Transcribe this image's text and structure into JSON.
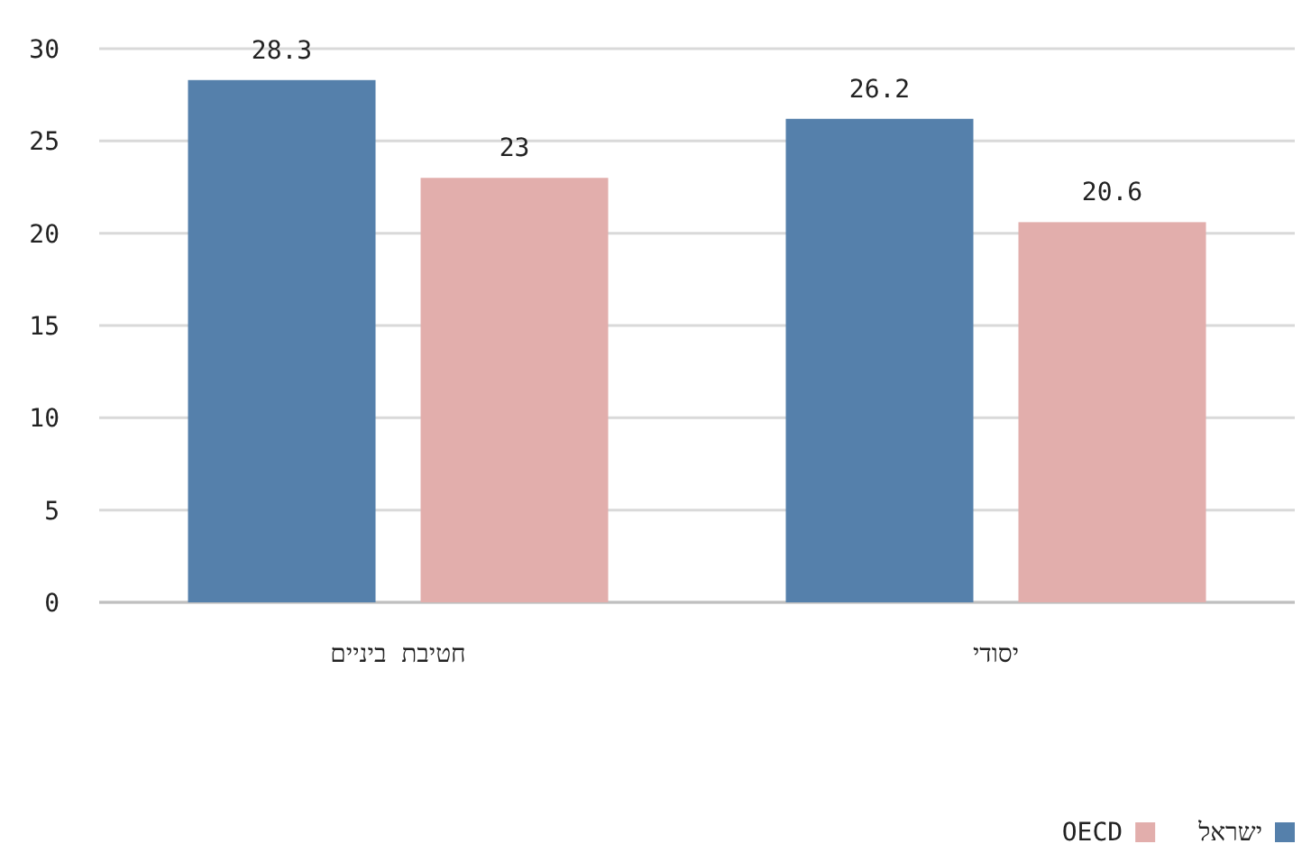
{
  "chart_data": {
    "type": "bar",
    "categories": [
      "חטיבת ביניים",
      "יסודי"
    ],
    "series": [
      {
        "name": "ישראל",
        "color": "#5580ab",
        "values": [
          28.3,
          26.2
        ]
      },
      {
        "name": "OECD",
        "color": "#e2aeac",
        "values": [
          23,
          20.6
        ]
      }
    ],
    "ylim": [
      0,
      30
    ],
    "yticks": [
      0,
      5,
      10,
      15,
      20,
      25,
      30
    ],
    "grid": "y",
    "legend": "bottom right",
    "data_labels": true
  }
}
